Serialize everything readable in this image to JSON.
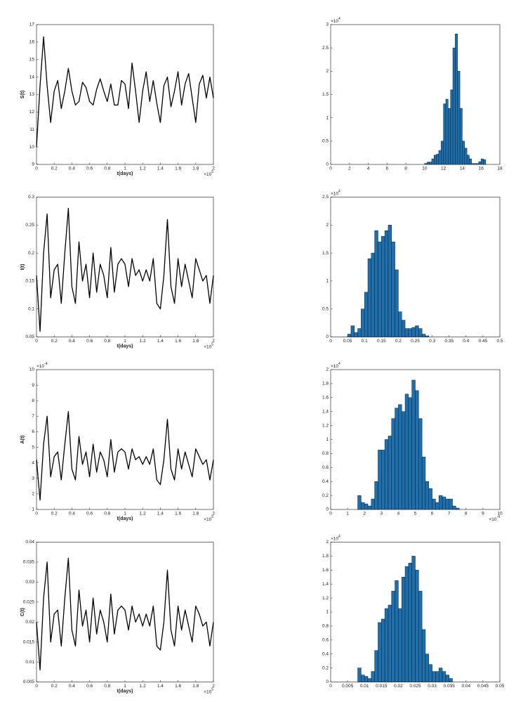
{
  "chart_data": [
    {
      "type": "line",
      "x_label": "t(days)",
      "y_label": "S(t)",
      "color": "#000000",
      "x_multiplier": {
        "base": "×10",
        "exponent": "5"
      },
      "x": [
        0,
        0.04,
        0.08,
        0.12,
        0.16,
        0.2,
        0.24,
        0.28,
        0.32,
        0.36,
        0.4,
        0.44,
        0.48,
        0.52,
        0.56,
        0.6,
        0.64,
        0.68,
        0.72,
        0.76,
        0.8,
        0.84,
        0.88,
        0.92,
        0.96,
        1.0,
        1.04,
        1.08,
        1.12,
        1.16,
        1.2,
        1.24,
        1.28,
        1.32,
        1.36,
        1.4,
        1.44,
        1.48,
        1.52,
        1.56,
        1.6,
        1.64,
        1.68,
        1.72,
        1.76,
        1.8,
        1.84,
        1.88,
        1.92,
        1.96,
        2.0
      ],
      "values": [
        10,
        13.5,
        16.3,
        13.5,
        11.4,
        13.2,
        13.8,
        12.2,
        13.2,
        14.5,
        13.2,
        12.4,
        12.6,
        13.7,
        13.4,
        12.6,
        12.4,
        13.3,
        13.9,
        13.2,
        12.6,
        13.6,
        12.4,
        12.4,
        13.8,
        13.6,
        12.2,
        14.8,
        13.2,
        11.4,
        13.2,
        14.3,
        12.6,
        13.8,
        12.5,
        11.4,
        13.5,
        14.0,
        12.3,
        13.2,
        14.3,
        12.4,
        13.6,
        14.2,
        12.8,
        11.4,
        13.6,
        14.1,
        12.8,
        14.0,
        12.8
      ],
      "xlim": [
        0,
        2
      ],
      "xticks": [
        0,
        0.2,
        0.4,
        0.6,
        0.8,
        1,
        1.2,
        1.4,
        1.6,
        1.8,
        2
      ],
      "ylim": [
        9,
        17
      ],
      "yticks": [
        9,
        10,
        11,
        12,
        13,
        14,
        15,
        16,
        17
      ]
    },
    {
      "type": "histogram",
      "color": "#1f6fad",
      "y_multiplier": {
        "base": "×10",
        "exponent": "4"
      },
      "bins": [
        10,
        10.25,
        10.5,
        10.75,
        11,
        11.25,
        11.5,
        11.75,
        12,
        12.25,
        12.5,
        12.75,
        13,
        13.25,
        13.5,
        13.75,
        14,
        14.25,
        14.5,
        14.75,
        15,
        15.25,
        15.5,
        15.75,
        16,
        16.25,
        16.5
      ],
      "values": [
        0.02,
        0.05,
        0.05,
        0.12,
        0.2,
        0.22,
        0.3,
        0.5,
        1.3,
        1.4,
        1.2,
        1.6,
        2.5,
        2.8,
        2.0,
        1.2,
        0.5,
        0.35,
        0.2,
        0.12,
        0.02,
        0.02,
        0.02,
        0.06,
        0.12,
        0.1
      ],
      "xlim": [
        0,
        18
      ],
      "xticks": [
        0,
        2,
        4,
        6,
        8,
        10,
        12,
        14,
        16,
        18
      ],
      "ylim": [
        0,
        3
      ],
      "yticks": [
        0,
        0.5,
        1,
        1.5,
        2,
        2.5,
        3
      ]
    },
    {
      "type": "line",
      "x_label": "t(days)",
      "y_label": "I(t)",
      "color": "#000000",
      "x_multiplier": {
        "base": "×10",
        "exponent": "5"
      },
      "x": [
        0,
        0.04,
        0.08,
        0.12,
        0.16,
        0.2,
        0.24,
        0.28,
        0.32,
        0.36,
        0.4,
        0.44,
        0.48,
        0.52,
        0.56,
        0.6,
        0.64,
        0.68,
        0.72,
        0.76,
        0.8,
        0.84,
        0.88,
        0.92,
        0.96,
        1.0,
        1.04,
        1.08,
        1.12,
        1.16,
        1.2,
        1.24,
        1.28,
        1.32,
        1.36,
        1.4,
        1.44,
        1.48,
        1.52,
        1.56,
        1.6,
        1.64,
        1.68,
        1.72,
        1.76,
        1.8,
        1.84,
        1.88,
        1.92,
        1.96,
        2.0
      ],
      "values": [
        0.16,
        0.06,
        0.2,
        0.27,
        0.12,
        0.17,
        0.18,
        0.11,
        0.2,
        0.28,
        0.14,
        0.11,
        0.22,
        0.15,
        0.18,
        0.12,
        0.2,
        0.13,
        0.18,
        0.16,
        0.12,
        0.21,
        0.13,
        0.18,
        0.19,
        0.18,
        0.14,
        0.19,
        0.16,
        0.17,
        0.15,
        0.17,
        0.15,
        0.19,
        0.11,
        0.1,
        0.16,
        0.26,
        0.14,
        0.11,
        0.19,
        0.14,
        0.18,
        0.15,
        0.12,
        0.19,
        0.17,
        0.15,
        0.16,
        0.11,
        0.16
      ],
      "xlim": [
        0,
        2
      ],
      "xticks": [
        0,
        0.2,
        0.4,
        0.6,
        0.8,
        1,
        1.2,
        1.4,
        1.6,
        1.8,
        2
      ],
      "ylim": [
        0.05,
        0.3
      ],
      "yticks": [
        0.05,
        0.1,
        0.15,
        0.2,
        0.25,
        0.3
      ]
    },
    {
      "type": "histogram",
      "color": "#1f6fad",
      "y_multiplier": {
        "base": "×10",
        "exponent": "4"
      },
      "bins": [
        0.05,
        0.06,
        0.07,
        0.08,
        0.09,
        0.1,
        0.11,
        0.12,
        0.13,
        0.14,
        0.15,
        0.16,
        0.17,
        0.18,
        0.19,
        0.2,
        0.21,
        0.22,
        0.23,
        0.24,
        0.25,
        0.26,
        0.27,
        0.28,
        0.29
      ],
      "values": [
        0.05,
        0.2,
        0.08,
        0.15,
        0.5,
        0.8,
        1.4,
        1.5,
        1.9,
        1.7,
        1.8,
        1.9,
        2.0,
        1.7,
        1.2,
        0.45,
        0.3,
        0.15,
        0.15,
        0.17,
        0.2,
        0.15,
        0.05,
        0.02
      ],
      "xlim": [
        0,
        0.5
      ],
      "xticks": [
        0,
        0.05,
        0.1,
        0.15,
        0.2,
        0.25,
        0.3,
        0.35,
        0.4,
        0.45,
        0.5
      ],
      "ylim": [
        0,
        2.5
      ],
      "yticks": [
        0,
        0.5,
        1,
        1.5,
        2,
        2.5
      ]
    },
    {
      "type": "line",
      "x_label": "t(days)",
      "y_label": "A(t)",
      "color": "#000000",
      "x_multiplier": {
        "base": "×10",
        "exponent": "5"
      },
      "y_multiplier": {
        "base": "×10",
        "exponent": "-4"
      },
      "x": [
        0,
        0.04,
        0.08,
        0.12,
        0.16,
        0.2,
        0.24,
        0.28,
        0.32,
        0.36,
        0.4,
        0.44,
        0.48,
        0.52,
        0.56,
        0.6,
        0.64,
        0.68,
        0.72,
        0.76,
        0.8,
        0.84,
        0.88,
        0.92,
        0.96,
        1.0,
        1.04,
        1.08,
        1.12,
        1.16,
        1.2,
        1.24,
        1.28,
        1.32,
        1.36,
        1.4,
        1.44,
        1.48,
        1.52,
        1.56,
        1.6,
        1.64,
        1.68,
        1.72,
        1.76,
        1.8,
        1.84,
        1.88,
        1.92,
        1.96,
        2.0
      ],
      "values": [
        4.2,
        1.6,
        5.2,
        7.0,
        3.1,
        4.4,
        4.7,
        2.9,
        5.2,
        7.3,
        3.6,
        2.9,
        5.7,
        3.9,
        4.7,
        3.1,
        5.2,
        3.4,
        4.7,
        4.2,
        3.1,
        5.5,
        3.4,
        4.7,
        4.9,
        4.7,
        3.6,
        4.9,
        4.2,
        4.4,
        3.9,
        4.4,
        3.9,
        4.9,
        2.9,
        2.6,
        4.2,
        6.8,
        3.6,
        2.9,
        4.9,
        3.6,
        4.7,
        3.9,
        3.1,
        4.9,
        4.4,
        3.9,
        4.2,
        2.9,
        4.2
      ],
      "xlim": [
        0,
        2
      ],
      "xticks": [
        0,
        0.2,
        0.4,
        0.6,
        0.8,
        1,
        1.2,
        1.4,
        1.6,
        1.8,
        2
      ],
      "ylim": [
        1,
        10
      ],
      "yticks": [
        1,
        2,
        3,
        4,
        5,
        6,
        7,
        8,
        9,
        10
      ]
    },
    {
      "type": "histogram",
      "color": "#1f6fad",
      "y_multiplier": {
        "base": "×10",
        "exponent": "4"
      },
      "x_multiplier": {
        "base": "×10",
        "exponent": "-4"
      },
      "bins": [
        1.6,
        1.8,
        2.0,
        2.2,
        2.4,
        2.6,
        2.8,
        3.0,
        3.2,
        3.4,
        3.6,
        3.8,
        4.0,
        4.2,
        4.4,
        4.6,
        4.8,
        5.0,
        5.2,
        5.4,
        5.6,
        5.8,
        6.0,
        6.2,
        6.4,
        6.6,
        6.8,
        7.0,
        7.2,
        7.4,
        7.6
      ],
      "values": [
        0.2,
        0.1,
        0.08,
        0.05,
        0.15,
        0.4,
        0.85,
        0.85,
        1.0,
        1.05,
        1.3,
        1.45,
        1.5,
        1.4,
        1.65,
        1.6,
        1.85,
        1.7,
        1.3,
        0.75,
        0.4,
        0.3,
        0.15,
        0.1,
        0.2,
        0.18,
        0.15,
        0.15,
        0.05,
        0.02
      ],
      "xlim": [
        0,
        10
      ],
      "xticks": [
        0,
        1,
        2,
        3,
        4,
        5,
        6,
        7,
        8,
        9,
        10
      ],
      "ylim": [
        0,
        2
      ],
      "yticks": [
        0,
        0.2,
        0.4,
        0.6,
        0.8,
        1,
        1.2,
        1.4,
        1.6,
        1.8,
        2
      ]
    },
    {
      "type": "line",
      "x_label": "t(days)",
      "y_label": "C(t)",
      "color": "#000000",
      "x_multiplier": {
        "base": "×10",
        "exponent": "5"
      },
      "x": [
        0,
        0.04,
        0.08,
        0.12,
        0.16,
        0.2,
        0.24,
        0.28,
        0.32,
        0.36,
        0.4,
        0.44,
        0.48,
        0.52,
        0.56,
        0.6,
        0.64,
        0.68,
        0.72,
        0.76,
        0.8,
        0.84,
        0.88,
        0.92,
        0.96,
        1.0,
        1.04,
        1.08,
        1.12,
        1.16,
        1.2,
        1.24,
        1.28,
        1.32,
        1.36,
        1.4,
        1.44,
        1.48,
        1.52,
        1.56,
        1.6,
        1.64,
        1.68,
        1.72,
        1.76,
        1.8,
        1.84,
        1.88,
        1.92,
        1.96,
        2.0
      ],
      "values": [
        0.02,
        0.008,
        0.026,
        0.035,
        0.015,
        0.022,
        0.023,
        0.014,
        0.026,
        0.036,
        0.018,
        0.014,
        0.028,
        0.019,
        0.023,
        0.015,
        0.026,
        0.017,
        0.023,
        0.02,
        0.015,
        0.027,
        0.017,
        0.023,
        0.024,
        0.023,
        0.018,
        0.024,
        0.02,
        0.022,
        0.019,
        0.022,
        0.019,
        0.024,
        0.014,
        0.013,
        0.02,
        0.033,
        0.018,
        0.014,
        0.024,
        0.018,
        0.023,
        0.019,
        0.015,
        0.024,
        0.022,
        0.019,
        0.02,
        0.014,
        0.02
      ],
      "xlim": [
        0,
        2
      ],
      "xticks": [
        0,
        0.2,
        0.4,
        0.6,
        0.8,
        1,
        1.2,
        1.4,
        1.6,
        1.8,
        2
      ],
      "ylim": [
        0.005,
        0.04
      ],
      "yticks": [
        0.005,
        0.01,
        0.015,
        0.02,
        0.025,
        0.03,
        0.035,
        0.04
      ]
    },
    {
      "type": "histogram",
      "color": "#1f6fad",
      "y_multiplier": {
        "base": "×10",
        "exponent": "4"
      },
      "bins": [
        0.008,
        0.009,
        0.01,
        0.011,
        0.012,
        0.013,
        0.014,
        0.015,
        0.016,
        0.017,
        0.018,
        0.019,
        0.02,
        0.021,
        0.022,
        0.023,
        0.024,
        0.025,
        0.026,
        0.027,
        0.028,
        0.029,
        0.03,
        0.031,
        0.032,
        0.033,
        0.034,
        0.035,
        0.036
      ],
      "values": [
        0.2,
        0.1,
        0.08,
        0.05,
        0.15,
        0.45,
        0.85,
        0.9,
        1.05,
        1.1,
        1.3,
        1.45,
        1.05,
        1.5,
        1.65,
        1.7,
        1.8,
        1.6,
        1.3,
        0.75,
        0.4,
        0.25,
        0.15,
        0.15,
        0.2,
        0.15,
        0.1,
        0.05
      ],
      "xlim": [
        0,
        0.05
      ],
      "xticks": [
        0,
        0.005,
        0.01,
        0.015,
        0.02,
        0.025,
        0.03,
        0.035,
        0.04,
        0.045,
        0.05
      ],
      "ylim": [
        0,
        2
      ],
      "yticks": [
        0,
        0.2,
        0.4,
        0.6,
        0.8,
        1,
        1.2,
        1.4,
        1.6,
        1.8,
        2
      ]
    }
  ]
}
